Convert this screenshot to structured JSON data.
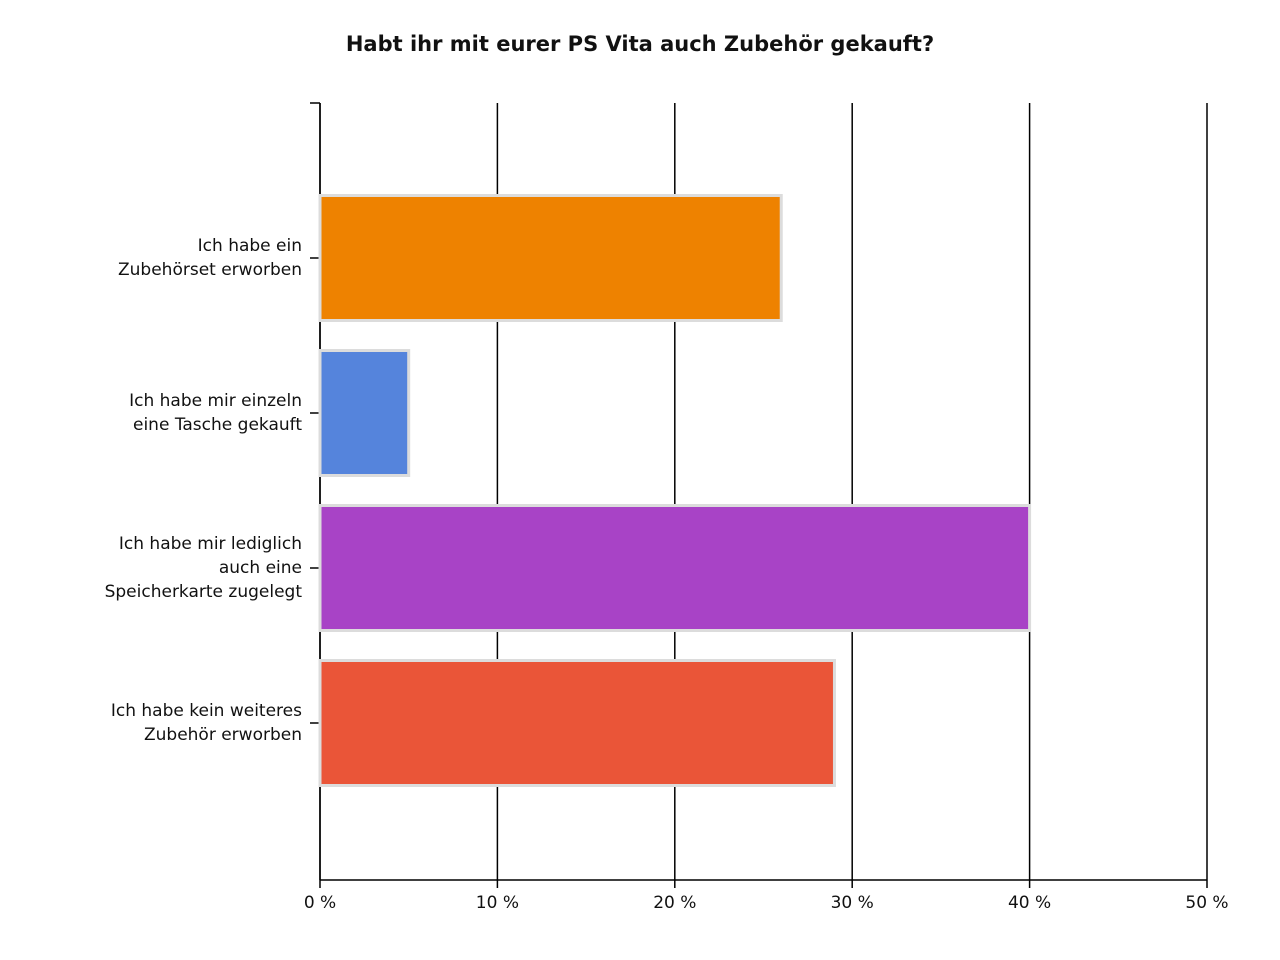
{
  "chart_data": {
    "type": "hbar",
    "title": "Habt ihr mit eurer PS Vita auch Zubehör gekauft?",
    "categories": [
      "Ich habe ein\nZubehörset erworben",
      "Ich habe mir einzeln\neine Tasche gekauft",
      "Ich habe mir lediglich\nauch eine\nSpeicherkarte zugelegt",
      "Ich habe kein weiteres\nZubehör erworben"
    ],
    "values": [
      26,
      5,
      40,
      29
    ],
    "colors": [
      "#ee8200",
      "#5584dc",
      "#a843c6",
      "#ea5538"
    ],
    "xlim": [
      0,
      50
    ],
    "xticks": [
      {
        "value": 0,
        "label": "0 %"
      },
      {
        "value": 10,
        "label": "10 %"
      },
      {
        "value": 20,
        "label": "20 %"
      },
      {
        "value": 30,
        "label": "30 %"
      },
      {
        "value": 40,
        "label": "40 %"
      },
      {
        "value": 50,
        "label": "50 %"
      }
    ],
    "grid": true
  }
}
